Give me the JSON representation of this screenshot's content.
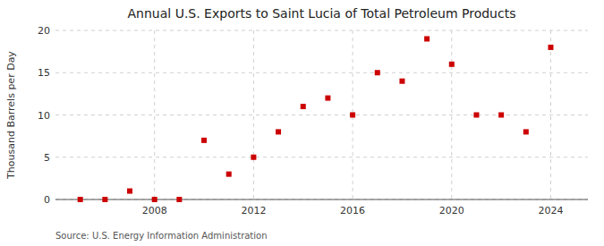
{
  "chart_data": {
    "type": "scatter",
    "title": "Annual U.S. Exports to Saint Lucia of Total Petroleum Products",
    "y_label": "Thousand Barrels per Day",
    "annotations": [
      "Source: U.S. Energy Information Administration"
    ],
    "x": [
      2005,
      2006,
      2007,
      2008,
      2009,
      2010,
      2011,
      2012,
      2013,
      2014,
      2015,
      2016,
      2017,
      2018,
      2019,
      2020,
      2021,
      2022,
      2023,
      2024
    ],
    "values": [
      0.0,
      0.0,
      1.0,
      0.0,
      0.0,
      7.0,
      3.0,
      5.0,
      8.0,
      11.0,
      12.0,
      10.0,
      15.0,
      14.0,
      19.0,
      16.0,
      10.0,
      10.0,
      8.0,
      18.0
    ],
    "color": "#cc0000",
    "marker": "square",
    "xlim": [
      2004.0,
      2025.5
    ],
    "ylim": [
      0,
      20
    ],
    "xticks": [
      2008,
      2012,
      2016,
      2020,
      2024
    ],
    "yticks": [
      0,
      5,
      10,
      15,
      20
    ],
    "grid": true
  }
}
